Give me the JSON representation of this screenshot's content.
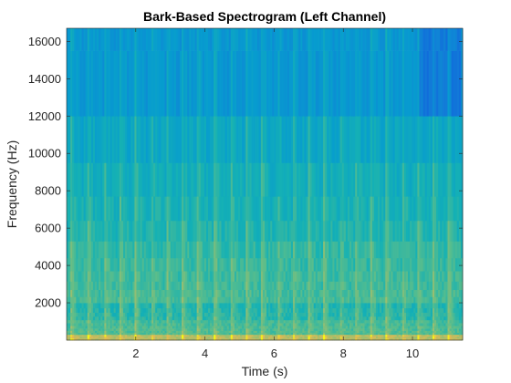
{
  "chart_data": {
    "type": "heatmap",
    "title": "Bark-Based Spectrogram (Left Channel)",
    "xlabel": "Time (s)",
    "ylabel": "Frequency (Hz)",
    "xlim": [
      0,
      11.45
    ],
    "ylim": [
      0,
      16700
    ],
    "xticks": [
      2,
      4,
      6,
      8,
      10
    ],
    "yticks": [
      2000,
      4000,
      6000,
      8000,
      10000,
      12000,
      14000,
      16000
    ],
    "grid": false,
    "colormap": "parula",
    "bark_band_edges_hz": [
      0,
      100,
      200,
      300,
      400,
      510,
      630,
      770,
      920,
      1080,
      1270,
      1480,
      1720,
      2000,
      2320,
      2700,
      3150,
      3700,
      4400,
      5300,
      6400,
      7700,
      9500,
      12000,
      15500,
      16700
    ],
    "onset_times_s": [
      0.15,
      0.62,
      1.1,
      1.55,
      2.0,
      2.45,
      2.9,
      3.35,
      3.8,
      4.3,
      4.75,
      5.2,
      5.65,
      6.1,
      6.55,
      7.0,
      7.45,
      7.9,
      8.35,
      8.8,
      9.25,
      9.7,
      10.15,
      10.6,
      11.05
    ],
    "colors": {
      "low": "#3e7fe8",
      "mid": "#16b3c8",
      "high": "#f9d82a"
    }
  }
}
